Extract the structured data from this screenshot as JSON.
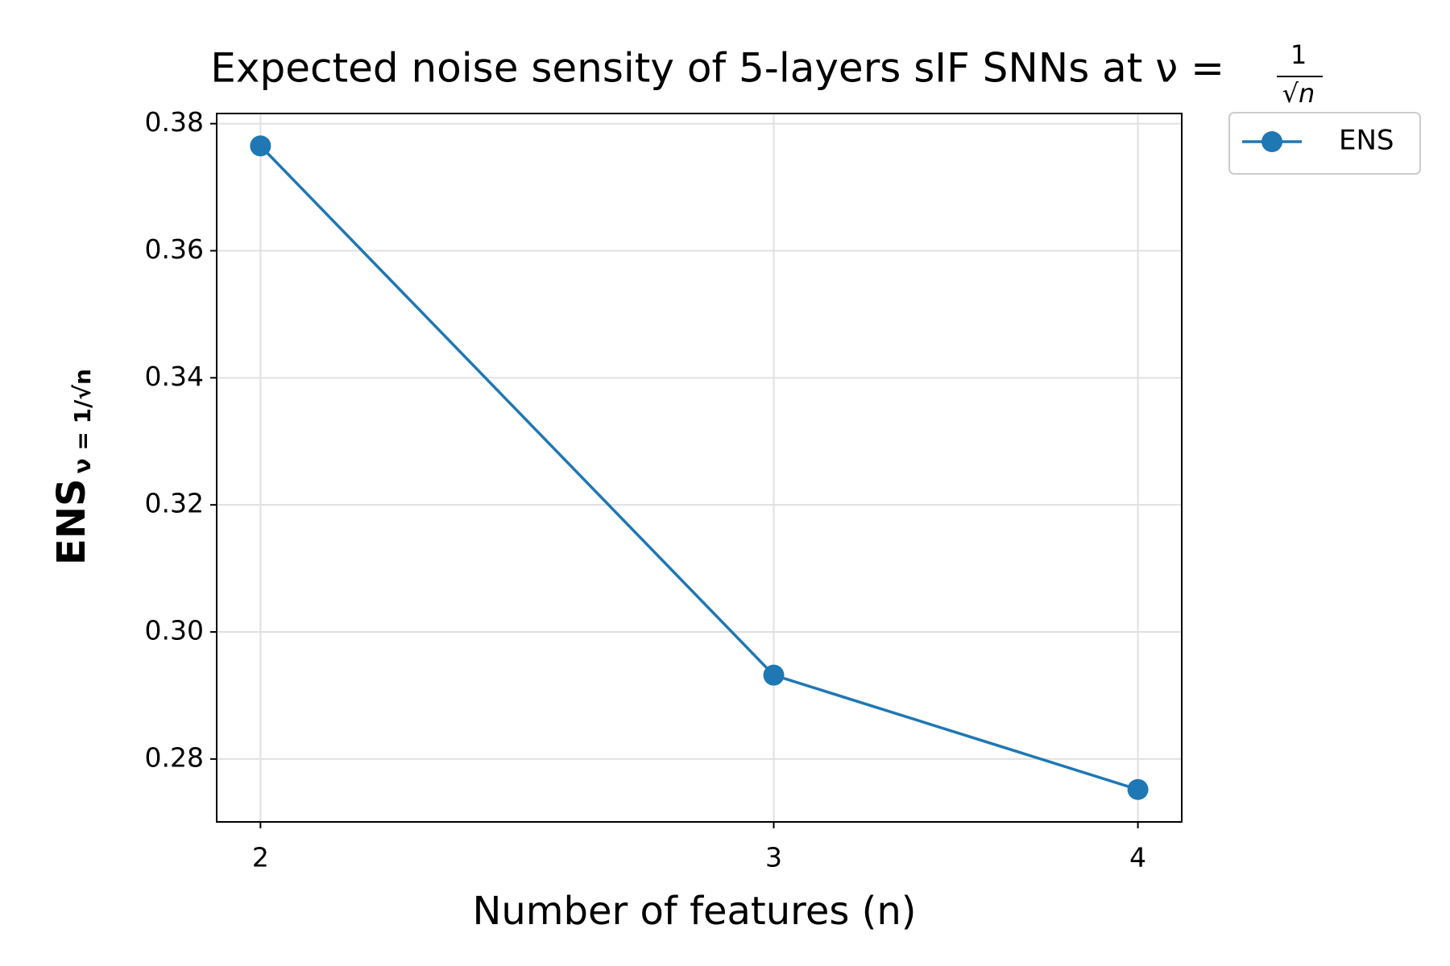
{
  "chart_data": {
    "type": "line",
    "title": "Expected noise sensity of 5-layers sIF SNNs at ν =",
    "title_fraction": {
      "numerator": "1",
      "denominator": "√n"
    },
    "xlabel": "Number of features (n)",
    "ylabel": "ENS",
    "ylabel_subscript": "ν = 1/√n",
    "x": [
      2,
      3,
      4
    ],
    "series": [
      {
        "name": "ENS",
        "color": "#1f77b4",
        "values": [
          0.3765,
          0.2932,
          0.2752
        ]
      }
    ],
    "xscale": "log",
    "xlim": [
      1.932,
      4.141
    ],
    "xticks": [
      2,
      3,
      4
    ],
    "ylim": [
      0.2701,
      0.3816
    ],
    "yticks": [
      {
        "value": 0.28,
        "label": "0.28"
      },
      {
        "value": 0.3,
        "label": "0.30"
      },
      {
        "value": 0.32,
        "label": "0.32"
      },
      {
        "value": 0.34,
        "label": "0.34"
      },
      {
        "value": 0.36,
        "label": "0.36"
      },
      {
        "value": 0.38,
        "label": "0.38"
      }
    ],
    "grid": true,
    "legend": "outside-upper-right"
  }
}
